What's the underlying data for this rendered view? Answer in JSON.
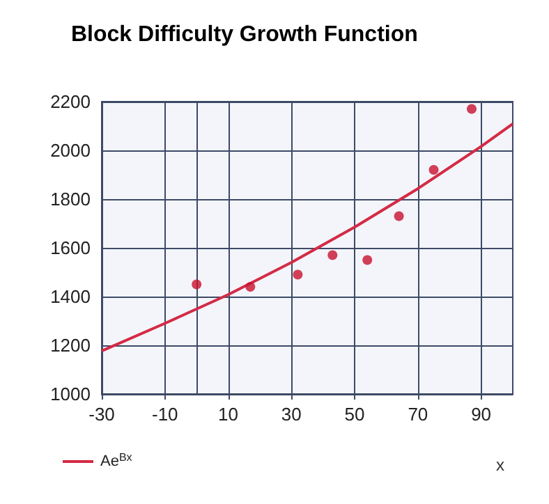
{
  "chart_data": {
    "type": "scatter",
    "title": "Block Difficulty Growth Function",
    "xlabel": "x",
    "series": [
      {
        "color": "#c8102e",
        "x": [
          0,
          17,
          32,
          43,
          54,
          64,
          75,
          87
        ],
        "values": [
          1450,
          1440,
          1490,
          1570,
          1550,
          1730,
          1920,
          2170
        ]
      },
      {
        "type": "line",
        "name": "Ae$^{Bx}$",
        "color": "#d42a45",
        "marker": "none",
        "x": [
          -30,
          -10,
          10,
          30,
          50,
          70,
          90,
          100
        ],
        "values": [
          1177,
          1290,
          1408,
          1540,
          1685,
          1843,
          2016,
          2109
        ]
      }
    ],
    "xlim": [
      -30,
      100
    ],
    "xticks": [
      -30,
      -10,
      10,
      30,
      50,
      70,
      90
    ],
    "ylim": [
      1000,
      2200
    ],
    "yticks": [
      1000,
      1200,
      1400,
      1600,
      1800,
      2000,
      2200
    ],
    "grid": true,
    "legend": "bottom left",
    "marker": "circle"
  }
}
